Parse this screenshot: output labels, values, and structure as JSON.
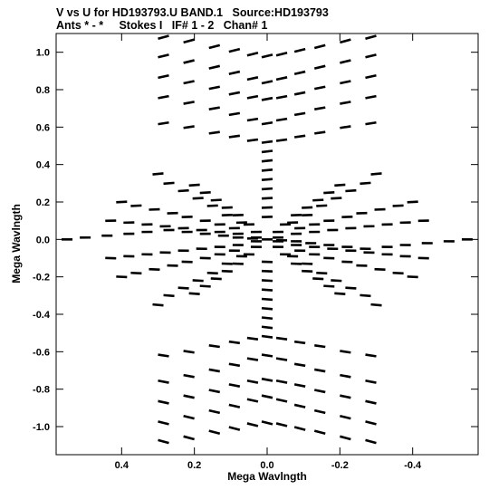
{
  "header": {
    "line1": "V vs U for HD193793.U BAND.1   Source:HD193793",
    "line2": "Ants * - *     Stokes I   IF# 1 - 2   Chan# 1"
  },
  "chart_data": {
    "type": "scatter",
    "title": "V vs U for HD193793.U BAND.1   Source:HD193793",
    "subtitle": "Ants * - *     Stokes I   IF# 1 - 2   Chan# 1",
    "xlabel": "Mega Wavlngth",
    "ylabel": "Mega Wavlngth",
    "xlim": [
      0.58,
      -0.58
    ],
    "ylim": [
      -1.15,
      1.1
    ],
    "x_ticks": [
      0.4,
      0.2,
      0.0,
      -0.2,
      -0.4
    ],
    "x_tick_labels": [
      "0.4",
      "0.2",
      "0.0",
      "-0.2",
      "-0.4"
    ],
    "y_ticks": [
      1.0,
      0.8,
      0.6,
      0.4,
      0.2,
      0.0,
      -0.2,
      -0.4,
      -0.6,
      -0.8,
      -1.0
    ],
    "y_tick_labels": [
      "1.0",
      "0.8",
      "0.6",
      "0.4",
      "0.2",
      "0.0",
      "-0.2",
      "-0.4",
      "-0.6",
      "-0.8",
      "-1.0"
    ],
    "grid": false,
    "series": [
      {
        "x": [
          0.285,
          0.215,
          0.145,
          0.09,
          0.04,
          0.0,
          -0.04,
          -0.09,
          -0.145,
          -0.215,
          -0.285
        ],
        "y": [
          1.08,
          1.06,
          1.03,
          1.01,
          0.99,
          0.98,
          0.99,
          1.01,
          1.03,
          1.06,
          1.08
        ]
      },
      {
        "x": [
          0.285,
          0.215,
          0.145,
          0.09,
          0.04,
          0.0,
          -0.04,
          -0.09,
          -0.145,
          -0.215,
          -0.285
        ],
        "y": [
          0.98,
          0.95,
          0.92,
          0.89,
          0.86,
          0.84,
          0.86,
          0.89,
          0.92,
          0.95,
          0.98
        ]
      },
      {
        "x": [
          0.285,
          0.215,
          0.145,
          0.09,
          0.04,
          0.0,
          -0.04,
          -0.09,
          -0.145,
          -0.215,
          -0.285
        ],
        "y": [
          0.87,
          0.84,
          0.81,
          0.78,
          0.76,
          0.75,
          0.76,
          0.78,
          0.81,
          0.84,
          0.87
        ]
      },
      {
        "x": [
          0.285,
          0.215,
          0.145,
          0.09,
          0.04,
          0.0,
          -0.04,
          -0.09,
          -0.145,
          -0.215,
          -0.285
        ],
        "y": [
          0.76,
          0.73,
          0.7,
          0.67,
          0.64,
          0.62,
          0.64,
          0.67,
          0.7,
          0.73,
          0.76
        ]
      },
      {
        "x": [
          0.285,
          0.215,
          0.145,
          0.09,
          0.04,
          0.0,
          -0.04,
          -0.09,
          -0.145,
          -0.215,
          -0.285
        ],
        "y": [
          0.62,
          0.6,
          0.57,
          0.55,
          0.53,
          0.52,
          0.53,
          0.55,
          0.57,
          0.6,
          0.62
        ]
      },
      {
        "x": [
          0.285,
          0.215,
          0.145,
          0.09,
          0.04,
          0.0,
          -0.04,
          -0.09,
          -0.145,
          -0.215,
          -0.285
        ],
        "y": [
          -0.62,
          -0.6,
          -0.57,
          -0.55,
          -0.53,
          -0.52,
          -0.53,
          -0.55,
          -0.57,
          -0.6,
          -0.62
        ]
      },
      {
        "x": [
          0.285,
          0.215,
          0.145,
          0.09,
          0.04,
          0.0,
          -0.04,
          -0.09,
          -0.145,
          -0.215,
          -0.285
        ],
        "y": [
          -0.76,
          -0.73,
          -0.7,
          -0.67,
          -0.64,
          -0.62,
          -0.64,
          -0.67,
          -0.7,
          -0.73,
          -0.76
        ]
      },
      {
        "x": [
          0.285,
          0.215,
          0.145,
          0.09,
          0.04,
          0.0,
          -0.04,
          -0.09,
          -0.145,
          -0.215,
          -0.285
        ],
        "y": [
          -0.87,
          -0.84,
          -0.81,
          -0.78,
          -0.76,
          -0.75,
          -0.76,
          -0.78,
          -0.81,
          -0.84,
          -0.87
        ]
      },
      {
        "x": [
          0.285,
          0.215,
          0.145,
          0.09,
          0.04,
          0.0,
          -0.04,
          -0.09,
          -0.145,
          -0.215,
          -0.285
        ],
        "y": [
          -0.98,
          -0.95,
          -0.92,
          -0.89,
          -0.86,
          -0.84,
          -0.86,
          -0.89,
          -0.92,
          -0.95,
          -0.98
        ]
      },
      {
        "x": [
          0.285,
          0.215,
          0.145,
          0.09,
          0.04,
          0.0,
          -0.04,
          -0.09,
          -0.145,
          -0.215,
          -0.285
        ],
        "y": [
          -1.08,
          -1.06,
          -1.03,
          -1.01,
          -0.99,
          -0.98,
          -0.99,
          -1.01,
          -1.03,
          -1.06,
          -1.08
        ]
      },
      {
        "x": [
          0.0,
          0.0,
          0.0,
          0.0,
          0.0,
          0.0,
          0.0,
          0.0,
          0.0,
          0.0,
          0.0,
          0.0,
          0.0,
          0.0,
          0.0,
          0.0
        ],
        "y": [
          0.47,
          0.42,
          0.37,
          0.32,
          0.27,
          0.22,
          0.17,
          0.12,
          -0.12,
          -0.17,
          -0.22,
          -0.27,
          -0.32,
          -0.37,
          -0.42,
          -0.47
        ]
      },
      {
        "x": [
          0.55,
          0.5,
          0.44,
          0.38,
          0.33,
          0.27,
          0.22,
          0.17,
          0.12,
          0.08,
          0.04,
          0.0,
          -0.04,
          -0.08,
          -0.12,
          -0.17,
          -0.22,
          -0.27,
          -0.33,
          -0.38,
          -0.44,
          -0.5,
          -0.55
        ],
        "y": [
          0.0,
          0.01,
          0.02,
          0.03,
          0.04,
          0.05,
          0.04,
          0.03,
          0.02,
          0.01,
          0.005,
          0.0,
          -0.005,
          -0.01,
          -0.02,
          -0.03,
          -0.04,
          -0.05,
          -0.04,
          -0.03,
          -0.02,
          -0.01,
          0.0
        ]
      },
      {
        "x": [
          0.3,
          0.27,
          0.23,
          0.19,
          0.15,
          0.11,
          0.07,
          0.03,
          -0.03,
          -0.07,
          -0.11,
          -0.15,
          -0.19,
          -0.23,
          -0.27,
          -0.3
        ],
        "y": [
          0.35,
          0.3,
          0.26,
          0.22,
          0.18,
          0.13,
          0.09,
          0.04,
          -0.04,
          -0.09,
          -0.13,
          -0.18,
          -0.22,
          -0.26,
          -0.3,
          -0.35
        ]
      },
      {
        "x": [
          -0.3,
          -0.27,
          -0.23,
          -0.19,
          -0.15,
          -0.11,
          -0.07,
          -0.03,
          0.03,
          0.07,
          0.11,
          0.15,
          0.19,
          0.23,
          0.27,
          0.3
        ],
        "y": [
          0.35,
          0.3,
          0.26,
          0.22,
          0.18,
          0.13,
          0.09,
          0.04,
          -0.04,
          -0.09,
          -0.13,
          -0.18,
          -0.22,
          -0.26,
          -0.3,
          -0.35
        ]
      },
      {
        "x": [
          0.43,
          0.38,
          0.33,
          0.28,
          0.23,
          0.18,
          0.13,
          0.08,
          0.03,
          -0.03,
          -0.08,
          -0.13,
          -0.18,
          -0.23,
          -0.28,
          -0.33,
          -0.38,
          -0.43
        ],
        "y": [
          0.1,
          0.09,
          0.08,
          0.07,
          0.06,
          0.05,
          0.04,
          0.03,
          0.01,
          -0.01,
          -0.03,
          -0.04,
          -0.05,
          -0.06,
          -0.07,
          -0.08,
          -0.09,
          -0.1
        ]
      },
      {
        "x": [
          0.43,
          0.38,
          0.33,
          0.28,
          0.23,
          0.18,
          0.13,
          0.08,
          0.03,
          -0.03,
          -0.08,
          -0.13,
          -0.18,
          -0.23,
          -0.28,
          -0.33,
          -0.38,
          -0.43
        ],
        "y": [
          -0.1,
          -0.09,
          -0.08,
          -0.07,
          -0.06,
          -0.05,
          -0.04,
          -0.03,
          -0.01,
          0.01,
          0.03,
          0.04,
          0.05,
          0.06,
          0.07,
          0.08,
          0.09,
          0.1
        ]
      },
      {
        "x": [
          0.4,
          0.36,
          0.31,
          0.26,
          0.22,
          0.17,
          0.13,
          0.09,
          -0.09,
          -0.13,
          -0.17,
          -0.22,
          -0.26,
          -0.31,
          -0.36,
          -0.4
        ],
        "y": [
          0.2,
          0.18,
          0.16,
          0.14,
          0.12,
          0.1,
          0.08,
          0.06,
          -0.06,
          -0.08,
          -0.1,
          -0.12,
          -0.14,
          -0.16,
          -0.18,
          -0.2
        ]
      },
      {
        "x": [
          0.4,
          0.36,
          0.31,
          0.26,
          0.22,
          0.17,
          0.13,
          0.09,
          -0.09,
          -0.13,
          -0.17,
          -0.22,
          -0.26,
          -0.31,
          -0.36,
          -0.4
        ],
        "y": [
          -0.2,
          -0.18,
          -0.16,
          -0.14,
          -0.12,
          -0.1,
          -0.08,
          -0.06,
          0.06,
          0.08,
          0.1,
          0.12,
          0.14,
          0.16,
          0.18,
          0.2
        ]
      },
      {
        "x": [
          0.2,
          0.17,
          0.14,
          0.11,
          0.08,
          0.05,
          -0.05,
          -0.08,
          -0.11,
          -0.14,
          -0.17,
          -0.2
        ],
        "y": [
          0.29,
          0.25,
          0.21,
          0.17,
          0.13,
          0.08,
          -0.08,
          -0.13,
          -0.17,
          -0.21,
          -0.25,
          -0.29
        ]
      },
      {
        "x": [
          -0.2,
          -0.17,
          -0.14,
          -0.11,
          -0.08,
          -0.05,
          0.05,
          0.08,
          0.11,
          0.14,
          0.17,
          0.2
        ],
        "y": [
          0.29,
          0.25,
          0.21,
          0.17,
          0.13,
          0.08,
          -0.08,
          -0.13,
          -0.17,
          -0.21,
          -0.25,
          -0.29
        ]
      }
    ]
  }
}
